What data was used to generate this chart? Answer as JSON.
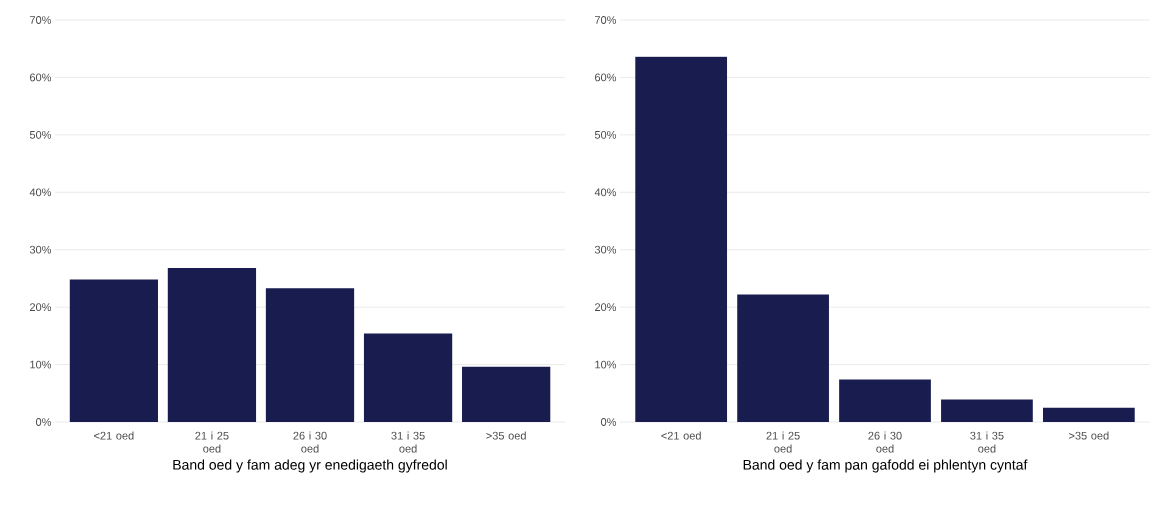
{
  "chart_data": [
    {
      "type": "bar",
      "xlabel": "Band oed y fam adeg yr enedigaeth gyfredol",
      "categories": [
        "<21 oed",
        "21 i 25 oed",
        "26 i 30 oed",
        "31 i 35 oed",
        ">35 oed"
      ],
      "values": [
        24.8,
        26.8,
        23.3,
        15.4,
        9.6
      ],
      "color": "#181c4e",
      "ylim": [
        0,
        70
      ],
      "yticks": [
        {
          "value": 0,
          "label": "0%"
        },
        {
          "value": 10,
          "label": "10%"
        },
        {
          "value": 20,
          "label": "20%"
        },
        {
          "value": 30,
          "label": "30%"
        },
        {
          "value": 40,
          "label": "40%"
        },
        {
          "value": 50,
          "label": "50%"
        },
        {
          "value": 60,
          "label": "60%"
        },
        {
          "value": 70,
          "label": "70%"
        }
      ],
      "grid": "y"
    },
    {
      "type": "bar",
      "xlabel": "Band oed y fam pan gafodd ei phlentyn cyntaf",
      "categories": [
        "<21 oed",
        "21 i 25 oed",
        "26 i 30 oed",
        "31 i 35 oed",
        ">35 oed"
      ],
      "values": [
        63.6,
        22.2,
        7.4,
        3.9,
        2.5
      ],
      "color": "#181c4e",
      "ylim": [
        0,
        70
      ],
      "yticks": [
        {
          "value": 0,
          "label": "0%"
        },
        {
          "value": 10,
          "label": "10%"
        },
        {
          "value": 20,
          "label": "20%"
        },
        {
          "value": 30,
          "label": "30%"
        },
        {
          "value": 40,
          "label": "40%"
        },
        {
          "value": 50,
          "label": "50%"
        },
        {
          "value": 60,
          "label": "60%"
        },
        {
          "value": 70,
          "label": "70%"
        }
      ],
      "grid": "y"
    }
  ]
}
